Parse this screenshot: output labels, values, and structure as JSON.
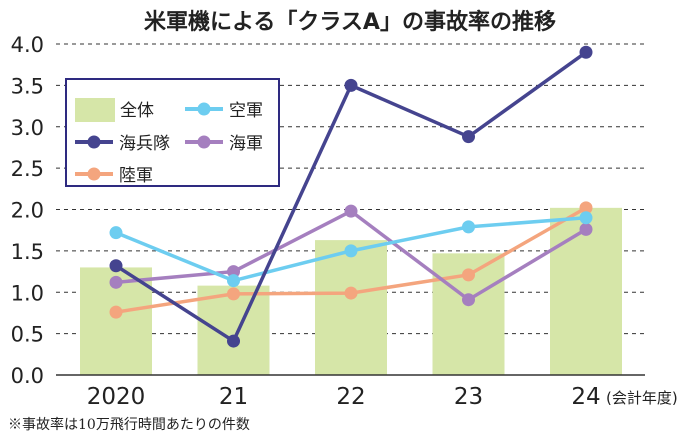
{
  "chart_data": {
    "type": "bar+line",
    "title": "米軍機による「クラスA」の事故率の推移",
    "categories": [
      "2020",
      "21",
      "22",
      "23",
      "24"
    ],
    "xlabel_suffix": "(会計年度)",
    "ylim": [
      0,
      4.0
    ],
    "yticks": [
      "0.0",
      "0.5",
      "1.0",
      "1.5",
      "2.0",
      "2.5",
      "3.0",
      "3.5",
      "4.0"
    ],
    "grid": "horizontal dashed",
    "legend_position": "top-left",
    "bar_series": {
      "name": "全体",
      "color": "#d6e6a8",
      "values": [
        1.3,
        1.08,
        1.63,
        1.47,
        2.02
      ]
    },
    "series": [
      {
        "name": "空軍",
        "color": "#6dcdf0",
        "values": [
          1.72,
          1.14,
          1.5,
          1.79,
          1.9
        ]
      },
      {
        "name": "海兵隊",
        "color": "#45448f",
        "values": [
          1.32,
          0.41,
          3.5,
          2.88,
          3.9
        ]
      },
      {
        "name": "海軍",
        "color": "#a57fbf",
        "values": [
          1.12,
          1.25,
          1.98,
          0.91,
          1.76
        ]
      },
      {
        "name": "陸軍",
        "color": "#f4a57e",
        "values": [
          0.76,
          0.98,
          0.99,
          1.21,
          2.02
        ]
      }
    ],
    "footnote": "※事故率は10万飛行時間あたりの件数"
  }
}
